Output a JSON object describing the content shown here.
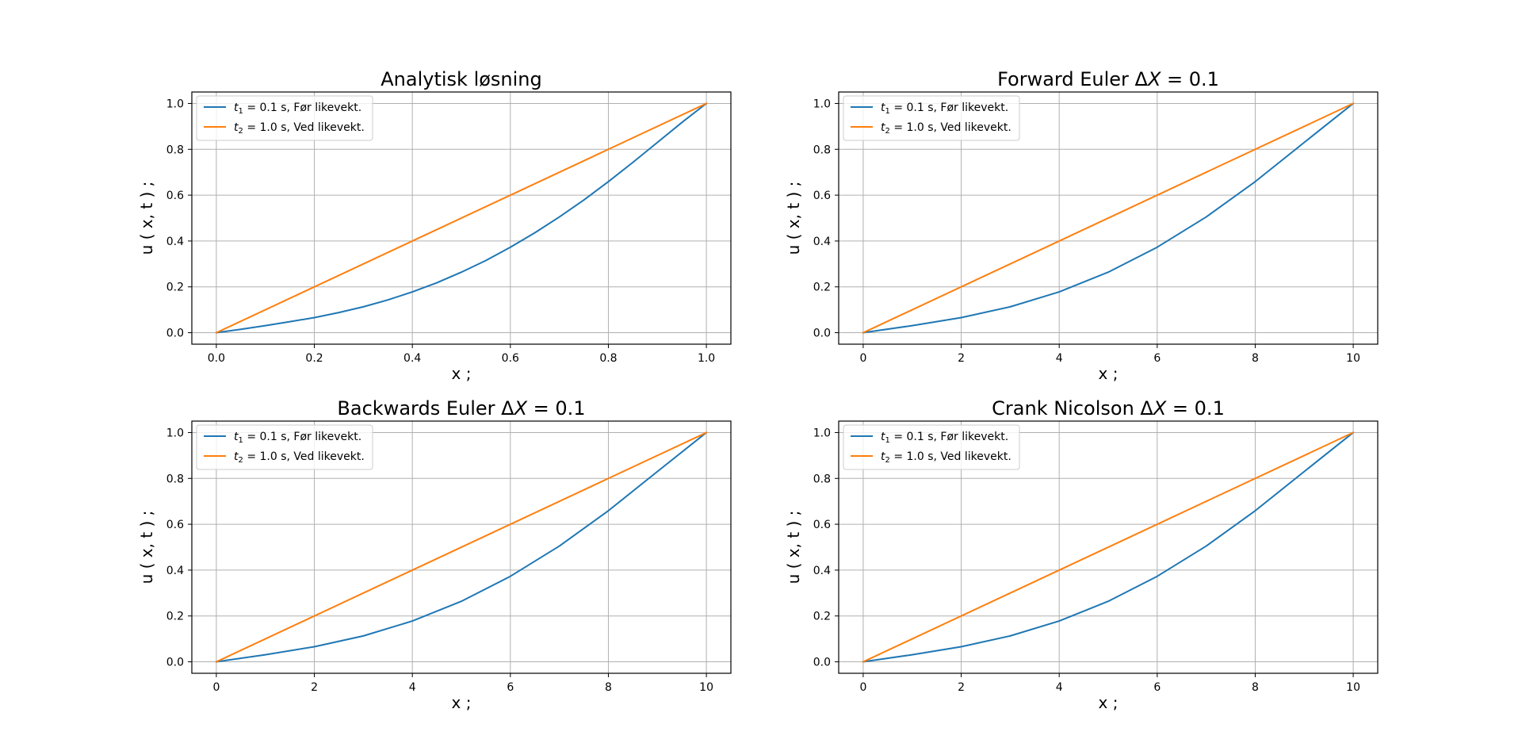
{
  "figure": {
    "background": "#ffffff",
    "colors": {
      "blue": "#1f77b4",
      "orange": "#ff7f0e",
      "grid": "#b0b0b0"
    }
  },
  "chart_data": [
    {
      "type": "line",
      "title": "Analytisk løsning",
      "xlabel": "x ;",
      "ylabel": "u ( x, t ) ;",
      "xlim": [
        -0.05,
        1.05
      ],
      "ylim": [
        -0.05,
        1.05
      ],
      "xticks": [
        "0.0",
        "0.2",
        "0.4",
        "0.6",
        "0.8",
        "1.0"
      ],
      "xtick_values": [
        0,
        0.2,
        0.4,
        0.6,
        0.8,
        1.0
      ],
      "yticks": [
        "0.0",
        "0.2",
        "0.4",
        "0.6",
        "0.8",
        "1.0"
      ],
      "ytick_values": [
        0,
        0.2,
        0.4,
        0.6,
        0.8,
        1.0
      ],
      "grid": true,
      "legend_position": "top-left",
      "series": [
        {
          "name": "t1 = 0.1 s,  Før likevekt.",
          "legend_base": "t",
          "legend_sub": "1",
          "legend_rest": " = 0.1 s,  Før likevekt.",
          "color": "#1f77b4",
          "x": [
            0.0,
            0.05,
            0.1,
            0.15,
            0.2,
            0.25,
            0.3,
            0.35,
            0.4,
            0.45,
            0.5,
            0.55,
            0.6,
            0.65,
            0.7,
            0.75,
            0.8,
            0.85,
            0.9,
            0.95,
            1.0
          ],
          "y": [
            0.0,
            0.015,
            0.031,
            0.048,
            0.066,
            0.088,
            0.113,
            0.143,
            0.178,
            0.218,
            0.264,
            0.315,
            0.373,
            0.436,
            0.505,
            0.579,
            0.659,
            0.743,
            0.83,
            0.917,
            1.0
          ]
        },
        {
          "name": "t2 = 1.0 s,  Ved likevekt.",
          "legend_base": "t",
          "legend_sub": "2",
          "legend_rest": " = 1.0 s,  Ved likevekt.",
          "color": "#ff7f0e",
          "x": [
            0.0,
            1.0
          ],
          "y": [
            0.0,
            1.0
          ]
        }
      ]
    },
    {
      "type": "line",
      "title": "Forward Euler ΔX = 0.1",
      "title_prefix": "Forward Euler Δ",
      "title_var": "X",
      "title_suffix": " = 0.1",
      "xlabel": "x ;",
      "ylabel": "u ( x, t ) ;",
      "xlim": [
        -0.5,
        10.5
      ],
      "ylim": [
        -0.05,
        1.05
      ],
      "xticks": [
        "0",
        "2",
        "4",
        "6",
        "8",
        "10"
      ],
      "xtick_values": [
        0,
        2,
        4,
        6,
        8,
        10
      ],
      "yticks": [
        "0.0",
        "0.2",
        "0.4",
        "0.6",
        "0.8",
        "1.0"
      ],
      "ytick_values": [
        0,
        0.2,
        0.4,
        0.6,
        0.8,
        1.0
      ],
      "grid": true,
      "legend_position": "top-left",
      "series": [
        {
          "name": "t1 = 0.1 s,  Før likevekt.",
          "legend_base": "t",
          "legend_sub": "1",
          "legend_rest": " = 0.1 s,  Før likevekt.",
          "color": "#1f77b4",
          "x": [
            0,
            1,
            2,
            3,
            4,
            5,
            6,
            7,
            8,
            9,
            10
          ],
          "y": [
            0.0,
            0.031,
            0.066,
            0.113,
            0.178,
            0.264,
            0.373,
            0.505,
            0.659,
            0.83,
            1.0
          ]
        },
        {
          "name": "t2 = 1.0 s,  Ved likevekt.",
          "legend_base": "t",
          "legend_sub": "2",
          "legend_rest": " = 1.0 s,  Ved likevekt.",
          "color": "#ff7f0e",
          "x": [
            0,
            10
          ],
          "y": [
            0.0,
            1.0
          ]
        }
      ]
    },
    {
      "type": "line",
      "title": "Backwards Euler ΔX = 0.1",
      "title_prefix": "Backwards Euler Δ",
      "title_var": "X",
      "title_suffix": " = 0.1",
      "xlabel": "x ;",
      "ylabel": "u ( x, t ) ;",
      "xlim": [
        -0.5,
        10.5
      ],
      "ylim": [
        -0.05,
        1.05
      ],
      "xticks": [
        "0",
        "2",
        "4",
        "6",
        "8",
        "10"
      ],
      "xtick_values": [
        0,
        2,
        4,
        6,
        8,
        10
      ],
      "yticks": [
        "0.0",
        "0.2",
        "0.4",
        "0.6",
        "0.8",
        "1.0"
      ],
      "ytick_values": [
        0,
        0.2,
        0.4,
        0.6,
        0.8,
        1.0
      ],
      "grid": true,
      "legend_position": "top-left",
      "series": [
        {
          "name": "t1 = 0.1 s,  Før likevekt.",
          "legend_base": "t",
          "legend_sub": "1",
          "legend_rest": " = 0.1 s,  Før likevekt.",
          "color": "#1f77b4",
          "x": [
            0,
            1,
            2,
            3,
            4,
            5,
            6,
            7,
            8,
            9,
            10
          ],
          "y": [
            0.0,
            0.031,
            0.066,
            0.113,
            0.178,
            0.264,
            0.373,
            0.505,
            0.659,
            0.83,
            1.0
          ]
        },
        {
          "name": "t2 = 1.0 s,  Ved likevekt.",
          "legend_base": "t",
          "legend_sub": "2",
          "legend_rest": " = 1.0 s,  Ved likevekt.",
          "color": "#ff7f0e",
          "x": [
            0,
            10
          ],
          "y": [
            0.0,
            1.0
          ]
        }
      ]
    },
    {
      "type": "line",
      "title": "Crank Nicolson ΔX = 0.1",
      "title_prefix": "Crank Nicolson Δ",
      "title_var": "X",
      "title_suffix": " = 0.1",
      "xlabel": "x ;",
      "ylabel": "u ( x, t ) ;",
      "xlim": [
        -0.5,
        10.5
      ],
      "ylim": [
        -0.05,
        1.05
      ],
      "xticks": [
        "0",
        "2",
        "4",
        "6",
        "8",
        "10"
      ],
      "xtick_values": [
        0,
        2,
        4,
        6,
        8,
        10
      ],
      "yticks": [
        "0.0",
        "0.2",
        "0.4",
        "0.6",
        "0.8",
        "1.0"
      ],
      "ytick_values": [
        0,
        0.2,
        0.4,
        0.6,
        0.8,
        1.0
      ],
      "grid": true,
      "legend_position": "top-left",
      "series": [
        {
          "name": "t1 = 0.1 s,  Før likevekt.",
          "legend_base": "t",
          "legend_sub": "1",
          "legend_rest": " = 0.1 s,  Før likevekt.",
          "color": "#1f77b4",
          "x": [
            0,
            1,
            2,
            3,
            4,
            5,
            6,
            7,
            8,
            9,
            10
          ],
          "y": [
            0.0,
            0.031,
            0.066,
            0.113,
            0.178,
            0.264,
            0.373,
            0.505,
            0.659,
            0.83,
            1.0
          ]
        },
        {
          "name": "t2 = 1.0 s,  Ved likevekt.",
          "legend_base": "t",
          "legend_sub": "2",
          "legend_rest": " = 1.0 s,  Ved likevekt.",
          "color": "#ff7f0e",
          "x": [
            0,
            10
          ],
          "y": [
            0.0,
            1.0
          ]
        }
      ]
    }
  ]
}
